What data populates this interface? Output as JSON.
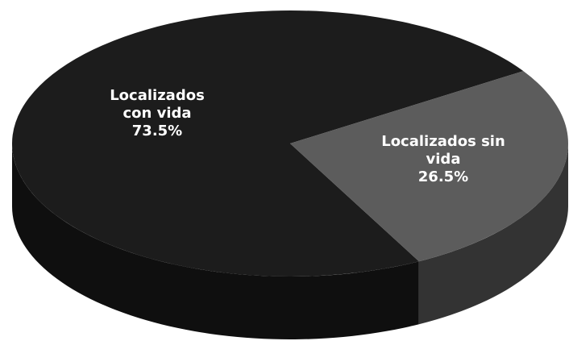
{
  "chart_data": {
    "type": "pie",
    "categories": [
      "Localizados con vida",
      "Localizados sin vida"
    ],
    "values": [
      73.5,
      26.5
    ],
    "value_labels": [
      "73.5%",
      "26.5%"
    ],
    "colors": [
      "#1c1c1c",
      "#5c5c5c"
    ]
  }
}
